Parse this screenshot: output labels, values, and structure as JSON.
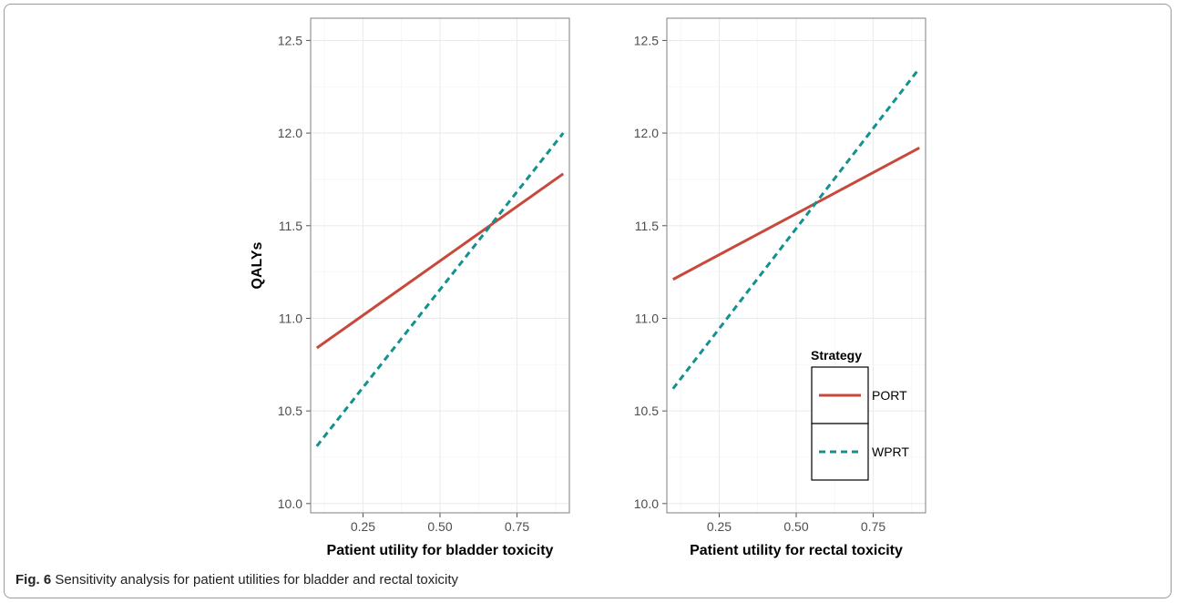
{
  "caption": {
    "label": "Fig. 6",
    "text": " Sensitivity analysis for patient utilities for bladder and rectal toxicity"
  },
  "colors": {
    "PORT": "#c8483b",
    "WPRT": "#12918f",
    "grid": "#ebebeb",
    "panel_border": "#7f7f7f"
  },
  "legend": {
    "title": "Strategy",
    "placement": "inside bottom-right of right panel",
    "items": [
      {
        "label": "PORT",
        "style": "solid"
      },
      {
        "label": "WPRT",
        "style": "dashed"
      }
    ]
  },
  "chart_data": [
    {
      "type": "line",
      "xlabel": "Patient utility for bladder toxicity",
      "ylabel": "QALYs",
      "xlim": [
        0.08,
        0.92
      ],
      "ylim": [
        9.95,
        12.62
      ],
      "xticks": [
        "0.25",
        "0.50",
        "0.75"
      ],
      "yticks": [
        "10.0",
        "10.5",
        "11.0",
        "11.5",
        "12.0",
        "12.5"
      ],
      "grid": true,
      "series": [
        {
          "name": "PORT",
          "x": [
            0.1,
            0.9
          ],
          "y": [
            10.84,
            11.78
          ]
        },
        {
          "name": "WPRT",
          "x": [
            0.1,
            0.9
          ],
          "y": [
            10.31,
            12.0
          ]
        }
      ]
    },
    {
      "type": "line",
      "xlabel": "Patient utility for rectal toxicity",
      "ylabel": "",
      "xlim": [
        0.08,
        0.92
      ],
      "ylim": [
        9.95,
        12.62
      ],
      "xticks": [
        "0.25",
        "0.50",
        "0.75"
      ],
      "yticks": [
        "10.0",
        "10.5",
        "11.0",
        "11.5",
        "12.0",
        "12.5"
      ],
      "grid": true,
      "series": [
        {
          "name": "PORT",
          "x": [
            0.1,
            0.9
          ],
          "y": [
            11.21,
            11.92
          ]
        },
        {
          "name": "WPRT",
          "x": [
            0.1,
            0.9
          ],
          "y": [
            10.62,
            12.35
          ]
        }
      ]
    }
  ]
}
